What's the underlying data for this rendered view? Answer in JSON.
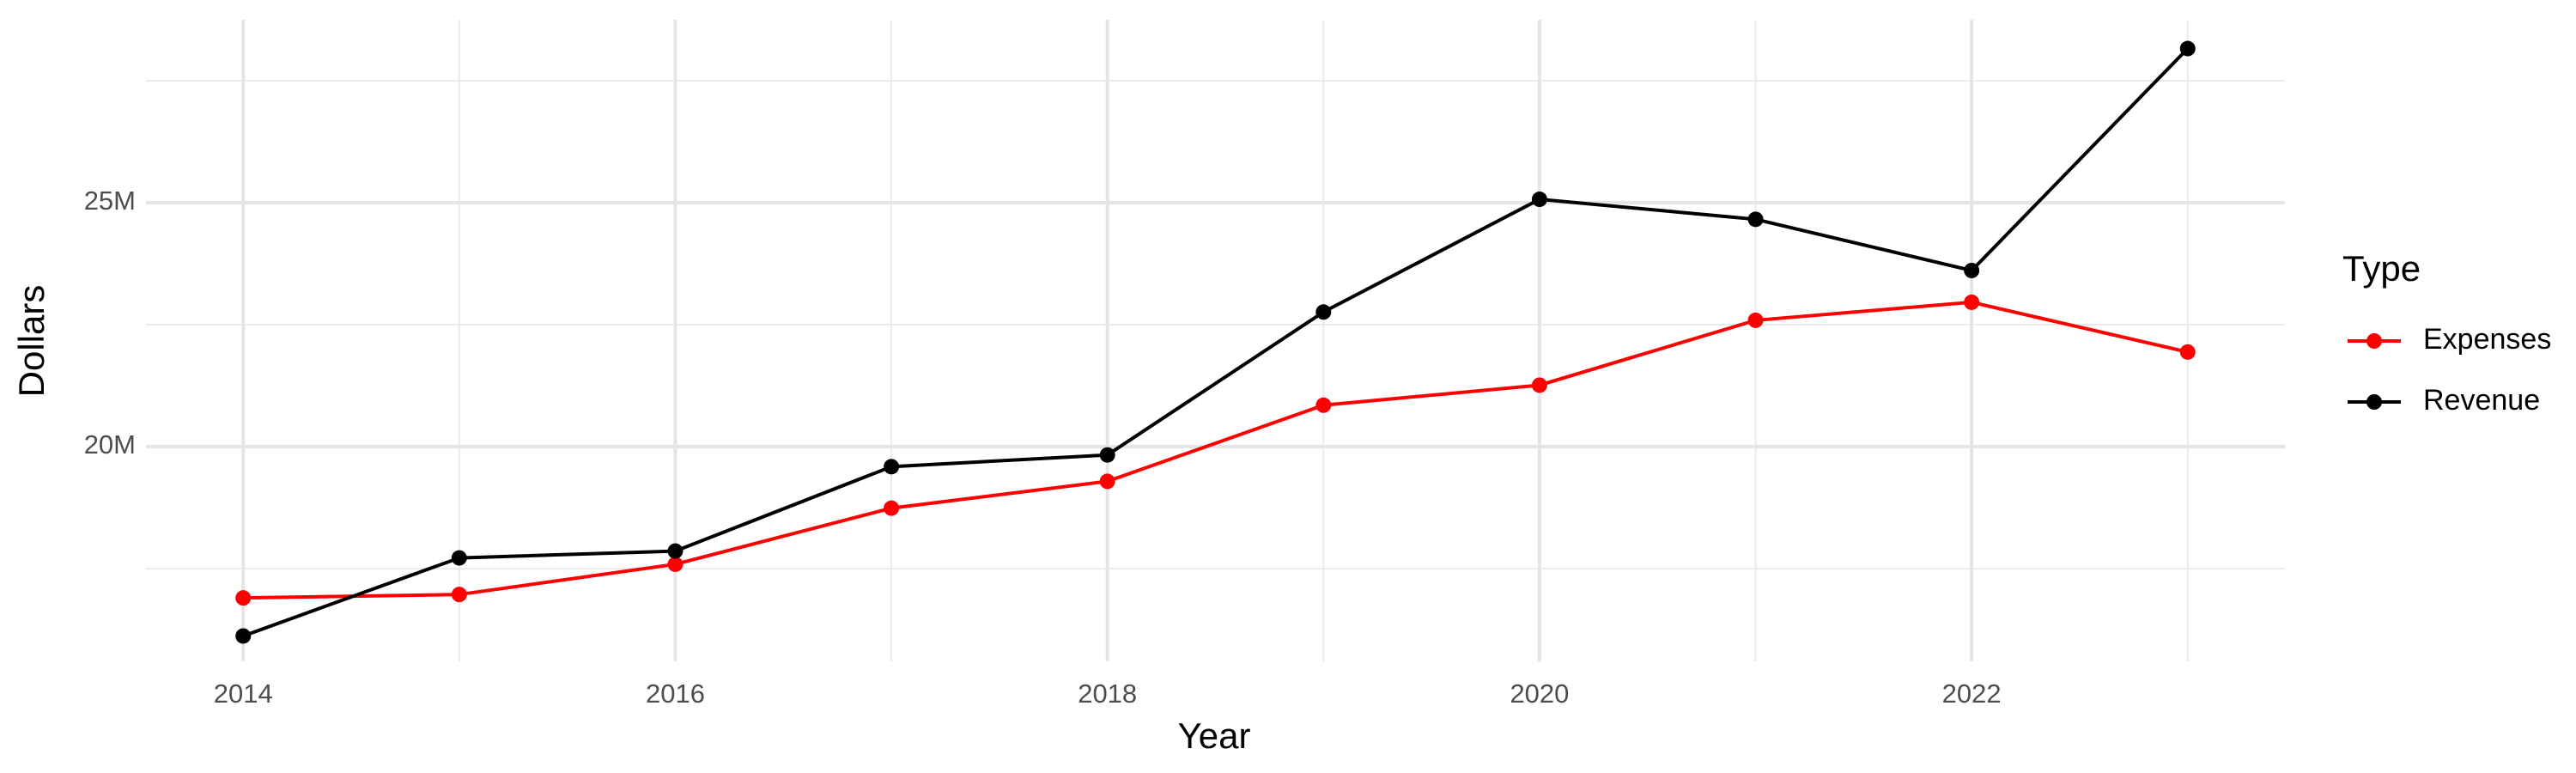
{
  "chart_data": {
    "type": "line",
    "x_label": "Year",
    "y_label": "Dollars",
    "legend_title": "Type",
    "legend_position": "right",
    "grid": true,
    "x": [
      2014,
      2015,
      2016,
      2017,
      2018,
      2019,
      2020,
      2021,
      2022,
      2023
    ],
    "series": [
      {
        "name": "Expenses",
        "color": "#ff0000",
        "values": [
          16900000,
          16970000,
          17590000,
          18740000,
          19290000,
          20850000,
          21260000,
          22590000,
          22960000,
          21940000
        ]
      },
      {
        "name": "Revenue",
        "color": "#000000",
        "values": [
          16120000,
          17720000,
          17860000,
          19590000,
          19830000,
          22760000,
          25070000,
          24660000,
          23610000,
          28160000
        ]
      }
    ],
    "xlim": [
      2013.55,
      2023.45
    ],
    "xticks": [
      2014,
      2016,
      2018,
      2020,
      2022
    ],
    "ylim": [
      15600000,
      28750000
    ],
    "yticks": [
      {
        "value": 20000000,
        "label": "20M"
      },
      {
        "value": 25000000,
        "label": "25M"
      }
    ]
  }
}
